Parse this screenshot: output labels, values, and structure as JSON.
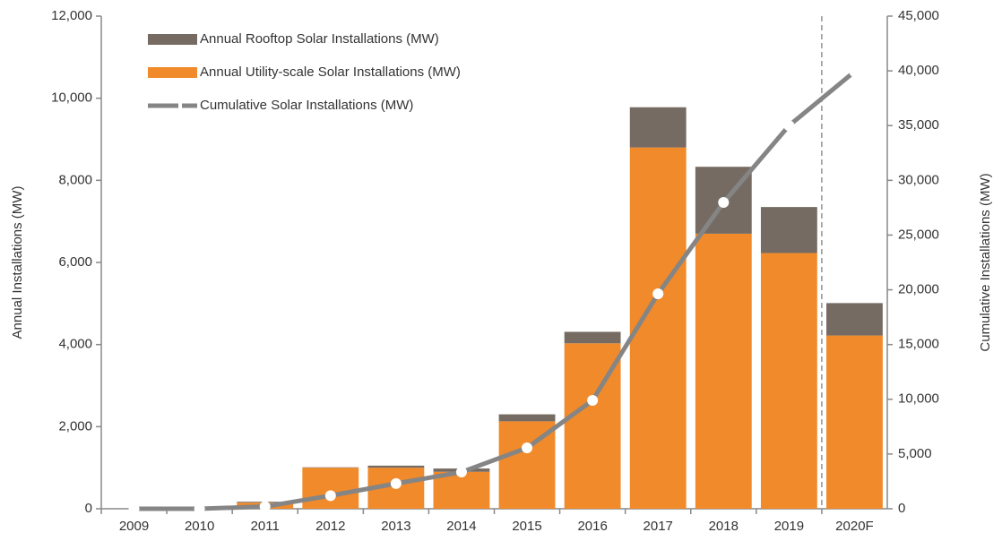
{
  "chart_data": {
    "type": "bar",
    "categories": [
      "2009",
      "2010",
      "2011",
      "2012",
      "2013",
      "2014",
      "2015",
      "2016",
      "2017",
      "2018",
      "2019",
      "2020F"
    ],
    "stacked": true,
    "y_label": "Annual Installations (MW)",
    "y2_label": "Cumulative Installations (MW)",
    "series": [
      {
        "name": "Annual Utility-scale Solar Installations (MW)",
        "color": "#f08a2a",
        "values": [
          0,
          0,
          150,
          1000,
          1000,
          900,
          2130,
          4030,
          8800,
          6700,
          6230,
          4220
        ]
      },
      {
        "name": "Annual Rooftop Solar Installations (MW)",
        "color": "#766b62",
        "values": [
          0,
          0,
          20,
          10,
          50,
          80,
          170,
          280,
          980,
          1630,
          1120,
          790
        ]
      },
      {
        "name": "Cumulative Solar Installations (MW)",
        "type": "line",
        "axis": "y2",
        "color": "#858585",
        "values": [
          0,
          0,
          200,
          1200,
          2300,
          3350,
          5560,
          9900,
          19640,
          27980,
          35000,
          39930
        ]
      }
    ],
    "legend_order": [
      1,
      0,
      2
    ],
    "legend": "top-left",
    "ylim": [
      0,
      12000
    ],
    "yticks": [
      0,
      {
        "value": 2000,
        "label": "2,000"
      },
      {
        "value": 4000,
        "label": "4,000"
      },
      {
        "value": 6000,
        "label": "6,000"
      },
      {
        "value": 8000,
        "label": "8,000"
      },
      {
        "value": 10000,
        "label": "10,000"
      },
      {
        "value": 12000,
        "label": "12,000"
      }
    ],
    "y2lim": [
      0,
      45000
    ],
    "y2ticks": [
      0,
      {
        "value": 5000,
        "label": "5,000"
      },
      {
        "value": 10000,
        "label": "10,000"
      },
      {
        "value": 15000,
        "label": "15,000"
      },
      {
        "value": 20000,
        "label": "20,000"
      },
      {
        "value": 25000,
        "label": "25,000"
      },
      {
        "value": 30000,
        "label": "30,000"
      },
      {
        "value": 35000,
        "label": "35,000"
      },
      {
        "value": 40000,
        "label": "40,000"
      },
      {
        "value": 45000,
        "label": "45,000"
      }
    ],
    "grid": false
  }
}
